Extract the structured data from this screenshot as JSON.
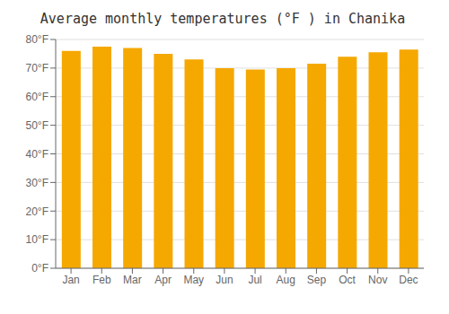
{
  "chart_data": {
    "type": "bar",
    "title": "Average monthly temperatures (°F ) in Chanika",
    "categories": [
      "Jan",
      "Feb",
      "Mar",
      "Apr",
      "May",
      "Jun",
      "Jul",
      "Aug",
      "Sep",
      "Oct",
      "Nov",
      "Dec"
    ],
    "values": [
      76.0,
      77.5,
      77.0,
      75.0,
      73.0,
      70.0,
      69.5,
      70.0,
      71.5,
      74.0,
      75.5,
      76.5
    ],
    "color": "#F5A800",
    "ylim": [
      0,
      80
    ],
    "yticks": [
      {
        "value": 0,
        "label": "0°F"
      },
      {
        "value": 10,
        "label": "10°F"
      },
      {
        "value": 20,
        "label": "20°F"
      },
      {
        "value": 30,
        "label": "30°F"
      },
      {
        "value": 40,
        "label": "40°F"
      },
      {
        "value": 50,
        "label": "50°F"
      },
      {
        "value": 60,
        "label": "60°F"
      },
      {
        "value": 70,
        "label": "70°F"
      },
      {
        "value": 80,
        "label": "80°F"
      }
    ],
    "grid": true
  }
}
